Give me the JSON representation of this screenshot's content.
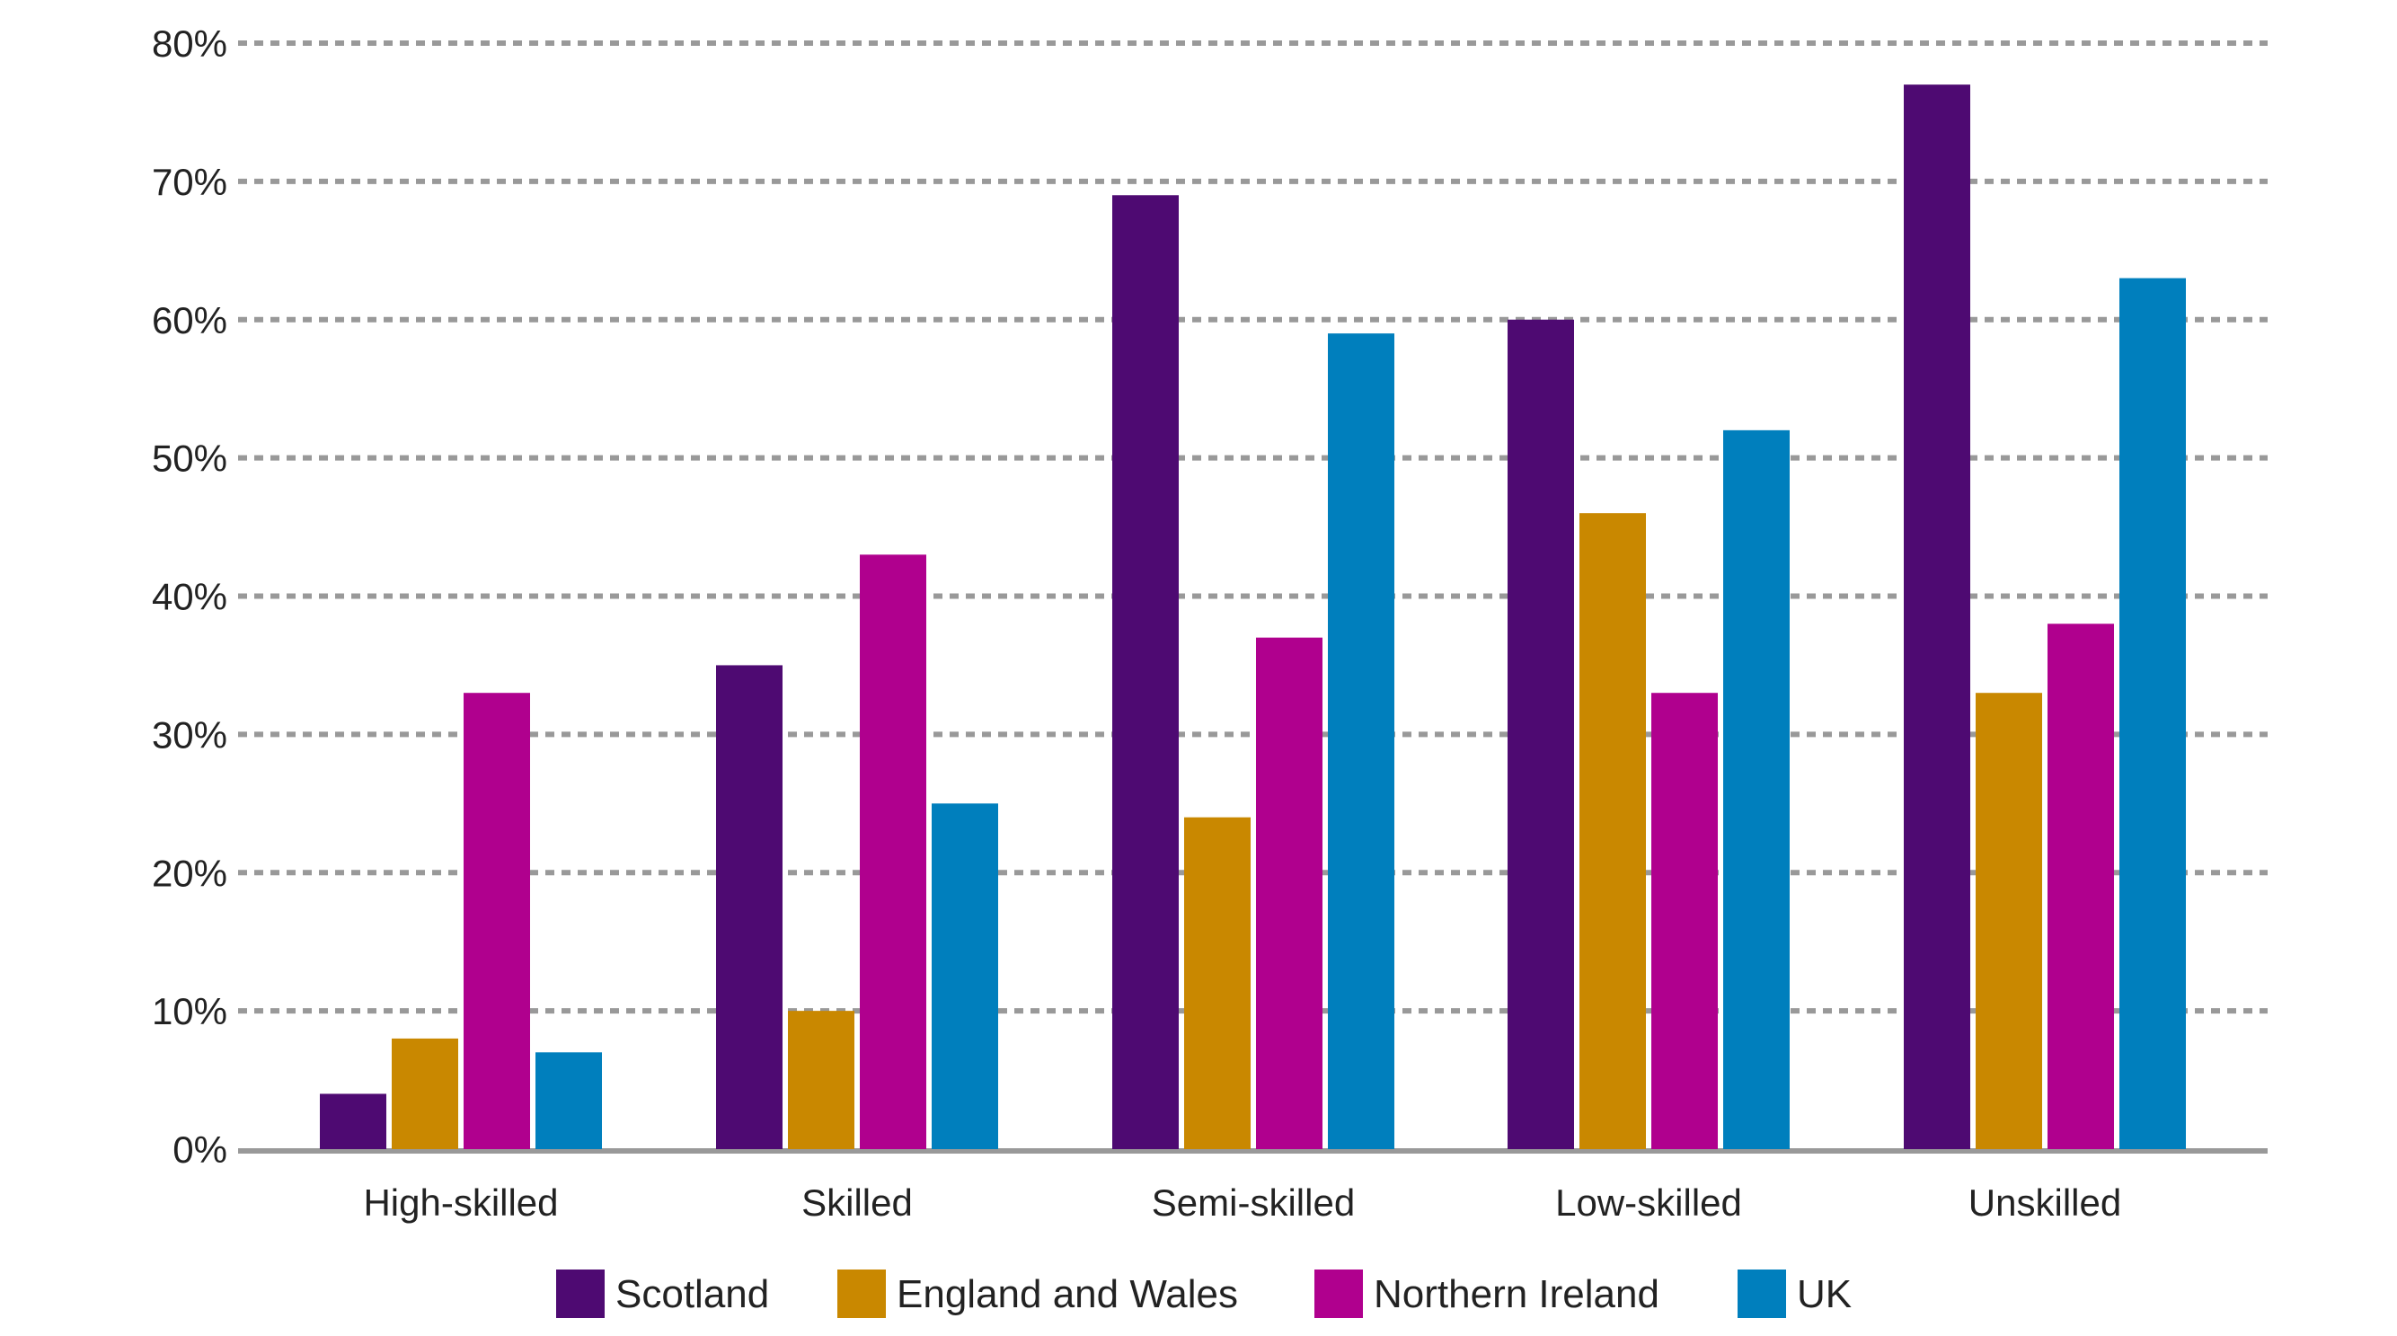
{
  "chart_data": {
    "type": "bar",
    "title": "",
    "xlabel": "",
    "ylabel": "",
    "ylim": [
      0,
      80
    ],
    "yticks": [
      "0%",
      "10%",
      "20%",
      "30%",
      "40%",
      "50%",
      "60%",
      "70%",
      "80%"
    ],
    "grid": true,
    "legend_position": "bottom",
    "categories": [
      "High-skilled",
      "Skilled",
      "Semi-skilled",
      "Low-skilled",
      "Unskilled"
    ],
    "series": [
      {
        "name": "Scotland",
        "color": "#4e0a72",
        "values": [
          4,
          35,
          69,
          60,
          77
        ]
      },
      {
        "name": "England and Wales",
        "color": "#c98800",
        "values": [
          8,
          10,
          24,
          46,
          33
        ]
      },
      {
        "name": "Northern Ireland",
        "color": "#b0008e",
        "values": [
          33,
          43,
          37,
          33,
          38
        ]
      },
      {
        "name": "UK",
        "color": "#007fbd",
        "values": [
          7,
          25,
          59,
          52,
          63
        ]
      }
    ]
  }
}
